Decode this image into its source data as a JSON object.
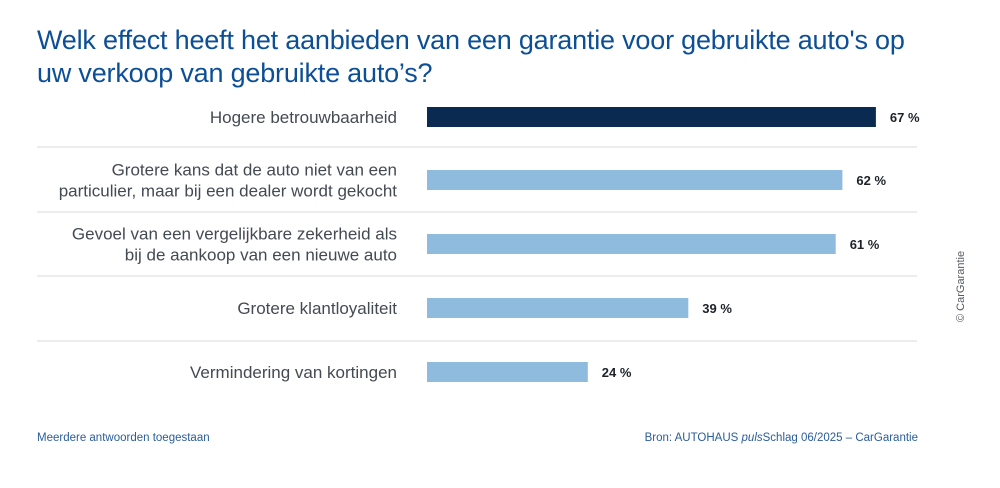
{
  "title": "Welk effect heeft het aanbieden van een garantie voor gebruikte auto's op uw verkoop van gebruikte auto’s?",
  "footer": {
    "note": "Meerdere antwoorden toegestaan",
    "source_prefix": "Bron: AUTOHAUS ",
    "source_italic": "puls",
    "source_suffix": "Schlag 06/2025 – CarGarantie"
  },
  "copyright": "© CarGarantie",
  "colors": {
    "title": "#0d4f97",
    "highlight_bar": "#0a2a52",
    "bar": "#8fbcde",
    "divider": "#e3e5e8"
  },
  "chart_data": {
    "type": "bar",
    "orientation": "horizontal",
    "title": "Welk effect heeft het aanbieden van een garantie voor gebruikte auto's op uw verkoop van gebruikte auto’s?",
    "categories": [
      [
        "Hogere betrouwbaarheid"
      ],
      [
        "Grotere kans dat de auto niet van een",
        "particulier, maar bij een dealer wordt gekocht"
      ],
      [
        "Gevoel van een vergelijkbare zekerheid als",
        "bij de aankoop van een nieuwe auto"
      ],
      [
        "Grotere klantloyaliteit"
      ],
      [
        "Vermindering van kortingen"
      ]
    ],
    "values": [
      67,
      62,
      61,
      39,
      24
    ],
    "value_labels": [
      "67 %",
      "62 %",
      "61 %",
      "39 %",
      "24 %"
    ],
    "unit": "%",
    "highlight_index": 0,
    "xlim": [
      0,
      100
    ],
    "grid": false
  }
}
